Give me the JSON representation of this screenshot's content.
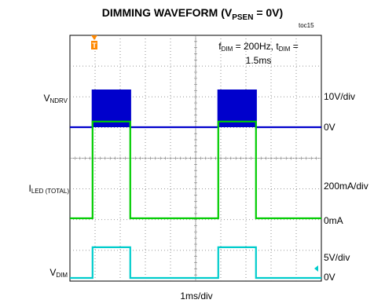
{
  "title": {
    "main": "DIMMING WAVEFORM (V",
    "sub": "PSEN",
    "tail": " = 0V)"
  },
  "tag": "toc15",
  "annotation": {
    "f_main": "f",
    "f_sub": "DIM",
    "f_tail": " = 200Hz, t",
    "t_sub": "DIM",
    "t_tail": " =",
    "line2": "1.5ms"
  },
  "x_axis_label": "1ms/div",
  "trigger_marker": "T",
  "channels": {
    "vndrv": {
      "name_main": "V",
      "name_sub": "NDRV",
      "scale": "10V/div",
      "zero_label": "0V",
      "color": "#0000cc"
    },
    "iled": {
      "name_main": "I",
      "name_sub": "LED (TOTAL)",
      "scale": "200mA/div",
      "zero_label": "0mA",
      "color": "#00cc00"
    },
    "vdim": {
      "name_main": "V",
      "name_sub": "DIM",
      "scale": "5V/div",
      "zero_label": "0V",
      "color": "#00cccc"
    }
  },
  "colors": {
    "grid": "#777777",
    "trigger": "#ff8800"
  },
  "chart_data": {
    "type": "line",
    "title": "DIMMING WAVEFORM (VPSEN = 0V)",
    "xlabel": "1ms/div",
    "x_unit": "ms",
    "xlim": [
      0,
      10
    ],
    "grid": true,
    "divisions": {
      "x": 10,
      "y": 8
    },
    "annotation": "fDIM = 200Hz, tDIM = 1.5ms",
    "series": [
      {
        "name": "VNDRV",
        "scale": "10V/div",
        "zero_label": "0V",
        "x": [
          0,
          0.9,
          0.9,
          2.4,
          2.4,
          5.9,
          5.9,
          7.4,
          7.4,
          10
        ],
        "y": [
          0,
          0,
          1.2,
          1.2,
          0,
          0,
          1.2,
          1.2,
          0,
          0
        ]
      },
      {
        "name": "ILED (TOTAL)",
        "scale": "200mA/div",
        "zero_label": "0mA",
        "x": [
          0,
          0.9,
          0.9,
          2.4,
          2.4,
          5.9,
          5.9,
          7.4,
          7.4,
          10
        ],
        "y": [
          0,
          0,
          3.15,
          3.15,
          0,
          0,
          3.15,
          3.15,
          0,
          0
        ]
      },
      {
        "name": "VDIM",
        "scale": "5V/div",
        "zero_label": "0V",
        "x": [
          0,
          0.9,
          0.9,
          2.4,
          2.4,
          5.9,
          5.9,
          7.4,
          7.4,
          10
        ],
        "y": [
          0,
          0,
          1.0,
          1.0,
          0,
          0,
          1.0,
          1.0,
          0,
          0
        ]
      }
    ]
  }
}
